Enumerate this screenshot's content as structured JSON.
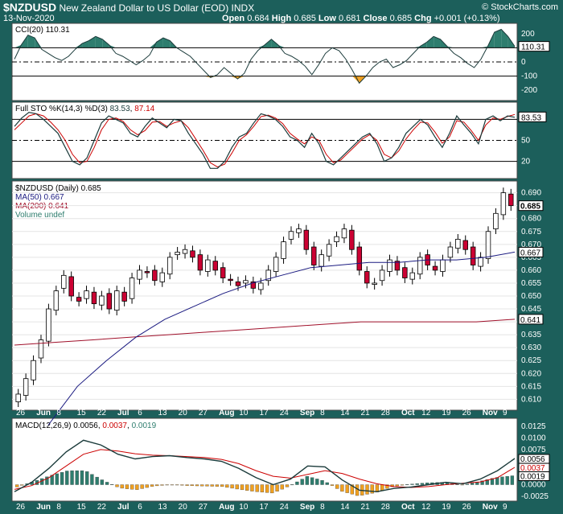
{
  "header": {
    "symbol": "$NZDUSD",
    "name": "New Zealand Dollar to US Dollar (EOD)",
    "exchange": "INDX",
    "date": "13-Nov-2020",
    "brand": "© StockCharts.com",
    "open_label": "Open",
    "open": "0.684",
    "high_label": "High",
    "high": "0.685",
    "low_label": "Low",
    "low": "0.681",
    "close_label": "Close",
    "close": "0.685",
    "chg_label": "Chg",
    "chg": "+0.001 (+0.13%)"
  },
  "panels": {
    "cci": {
      "legend": "CCI(20) 110.31",
      "value_tag": "110.31",
      "ticks": [
        "200",
        "100",
        "0",
        "-100",
        "-200"
      ]
    },
    "sto": {
      "legend_prefix": "Full STO %K(14,3) %D(3)",
      "k": "83.53",
      "d": "87.14",
      "value_tag": "83.53",
      "ticks": [
        "80",
        "50",
        "20"
      ]
    },
    "price": {
      "legend": "$NZDUSD (Daily) 0.685",
      "ma50": "MA(50) 0.667",
      "ma200": "MA(200) 0.641",
      "volume": "Volume undef",
      "ticks": [
        "0.690",
        "0.685",
        "0.680",
        "0.675",
        "0.670",
        "0.665",
        "0.660",
        "0.655",
        "0.650",
        "0.645",
        "0.640",
        "0.635",
        "0.630",
        "0.625",
        "0.620",
        "0.615",
        "0.610"
      ],
      "tags": [
        "0.685",
        "0.667",
        "0.641"
      ]
    },
    "macd": {
      "legend_prefix": "MACD(12,26,9)",
      "macd": "0.0056",
      "signal": "0.0037",
      "hist": "0.0019",
      "ticks": [
        "0.0125",
        "0.0100",
        "0.0075",
        "0.0050",
        "0.0025",
        "0.0000",
        "-0.0025"
      ],
      "tags": [
        "0.0056",
        "0.0037",
        "0.0019"
      ]
    }
  },
  "x_axis": [
    "26",
    "Jun",
    "8",
    "15",
    "22",
    "Jul",
    "6",
    "13",
    "20",
    "27",
    "Aug",
    "10",
    "17",
    "24",
    "Sep",
    "8",
    "14",
    "21",
    "28",
    "Oct",
    "12",
    "19",
    "26",
    "Nov",
    "9"
  ],
  "colors": {
    "up": "#ffffff",
    "down": "#cc0033",
    "ma50": "#1a1a80",
    "ma200": "#a0102a",
    "cci_fill": "#2e7d6e",
    "cci_neg": "#f0a020",
    "macd_line": "#1a3a3a",
    "signal": "#cc0000",
    "hist_pos": "#2e7d6e",
    "hist_neg": "#f0a020"
  },
  "chart_data": [
    {
      "type": "line",
      "title": "CCI(20)",
      "ylim": [
        -250,
        250
      ],
      "reference_lines": [
        100,
        0,
        -100
      ],
      "x_labels": [
        "26",
        "Jun",
        "8",
        "15",
        "22",
        "Jul",
        "6",
        "13",
        "20",
        "27",
        "Aug",
        "10",
        "17",
        "24",
        "Sep",
        "8",
        "14",
        "21",
        "28",
        "Oct",
        "12",
        "19",
        "26",
        "Nov",
        "9"
      ],
      "series": [
        {
          "name": "CCI(20)",
          "values": [
            20,
            120,
            190,
            170,
            90,
            60,
            30,
            10,
            40,
            90,
            130,
            150,
            180,
            160,
            120,
            60,
            40,
            10,
            -20,
            10,
            50,
            140,
            170,
            150,
            100,
            70,
            40,
            -10,
            -60,
            -110,
            -90,
            -40,
            -80,
            -120,
            -80,
            20,
            80,
            120,
            160,
            120,
            60,
            40,
            10,
            -30,
            -90,
            -20,
            60,
            100,
            80,
            20,
            -60,
            -150,
            -100,
            -40,
            0,
            20,
            -40,
            -20,
            10,
            60,
            110,
            140,
            180,
            160,
            110,
            60,
            30,
            -10,
            -40,
            20,
            110,
            210,
            230,
            180,
            110
          ]
        }
      ]
    },
    {
      "type": "line",
      "title": "Full STO %K(14,3) %D(3)",
      "ylim": [
        0,
        100
      ],
      "reference_lines": [
        80,
        50,
        20
      ],
      "series": [
        {
          "name": "%K",
          "values": [
            70,
            82,
            90,
            88,
            80,
            70,
            60,
            40,
            20,
            15,
            25,
            50,
            75,
            85,
            80,
            75,
            60,
            55,
            70,
            82,
            75,
            68,
            80,
            78,
            60,
            45,
            30,
            10,
            10,
            20,
            40,
            55,
            60,
            75,
            88,
            85,
            80,
            70,
            55,
            50,
            40,
            60,
            45,
            20,
            15,
            25,
            35,
            45,
            55,
            60,
            45,
            20,
            25,
            40,
            60,
            70,
            80,
            72,
            55,
            40,
            60,
            85,
            72,
            60,
            45,
            80,
            85,
            78,
            85,
            83
          ]
        },
        {
          "name": "%D",
          "values": [
            65,
            75,
            85,
            88,
            85,
            76,
            65,
            50,
            30,
            18,
            20,
            40,
            65,
            80,
            82,
            77,
            65,
            58,
            64,
            76,
            77,
            70,
            75,
            78,
            68,
            52,
            36,
            18,
            12,
            16,
            32,
            50,
            58,
            70,
            84,
            86,
            82,
            74,
            60,
            52,
            45,
            55,
            50,
            30,
            18,
            22,
            32,
            42,
            52,
            58,
            50,
            30,
            25,
            35,
            52,
            65,
            76,
            75,
            62,
            46,
            55,
            78,
            76,
            64,
            50,
            72,
            82,
            80,
            84,
            87
          ]
        }
      ]
    },
    {
      "type": "line",
      "title": "$NZDUSD (Daily)",
      "ylabel": "Price",
      "ylim": [
        0.607,
        0.693
      ],
      "series": [
        {
          "name": "$NZDUSD close",
          "values": [
            0.612,
            0.618,
            0.625,
            0.633,
            0.645,
            0.652,
            0.658,
            0.65,
            0.648,
            0.652,
            0.647,
            0.65,
            0.645,
            0.652,
            0.648,
            0.657,
            0.66,
            0.659,
            0.656,
            0.659,
            0.665,
            0.667,
            0.668,
            0.665,
            0.66,
            0.664,
            0.66,
            0.657,
            0.656,
            0.654,
            0.656,
            0.653,
            0.655,
            0.66,
            0.665,
            0.671,
            0.675,
            0.676,
            0.668,
            0.662,
            0.666,
            0.67,
            0.673,
            0.676,
            0.668,
            0.66,
            0.655,
            0.655,
            0.66,
            0.664,
            0.66,
            0.657,
            0.659,
            0.665,
            0.662,
            0.66,
            0.664,
            0.669,
            0.672,
            0.668,
            0.662,
            0.665,
            0.675,
            0.682,
            0.69,
            0.685
          ]
        },
        {
          "name": "MA(50)",
          "values": [
            0.6,
            0.615,
            0.625,
            0.634,
            0.641,
            0.646,
            0.651,
            0.655,
            0.658,
            0.661,
            0.662,
            0.663,
            0.663,
            0.664,
            0.664,
            0.665,
            0.667
          ]
        },
        {
          "name": "MA(200)",
          "values": [
            0.631,
            0.632,
            0.633,
            0.634,
            0.635,
            0.636,
            0.637,
            0.638,
            0.639,
            0.64,
            0.64,
            0.64,
            0.64,
            0.641
          ]
        }
      ]
    },
    {
      "type": "line",
      "title": "MACD(12,26,9)",
      "ylim": [
        -0.003,
        0.0135
      ],
      "series": [
        {
          "name": "MACD",
          "values": [
            -0.0015,
            0.0005,
            0.0035,
            0.007,
            0.0095,
            0.0085,
            0.0065,
            0.0055,
            0.006,
            0.0062,
            0.0058,
            0.0055,
            0.005,
            0.0035,
            0.0015,
            0.0,
            0.0012,
            0.004,
            0.0038,
            0.001,
            -0.0012,
            -0.0015,
            -0.0008,
            -0.0005,
            0.0,
            0.0005,
            0.0002,
            0.0012,
            0.003,
            0.0056
          ]
        },
        {
          "name": "Signal",
          "values": [
            -0.001,
            -0.0002,
            0.0015,
            0.004,
            0.0065,
            0.0075,
            0.0072,
            0.0066,
            0.0063,
            0.0062,
            0.006,
            0.0058,
            0.0054,
            0.0045,
            0.003,
            0.0018,
            0.0014,
            0.0022,
            0.003,
            0.0024,
            0.0012,
            0.0002,
            -0.0004,
            -0.0006,
            -0.0004,
            0.0,
            0.0003,
            0.0006,
            0.0015,
            0.0037
          ]
        }
      ]
    }
  ]
}
